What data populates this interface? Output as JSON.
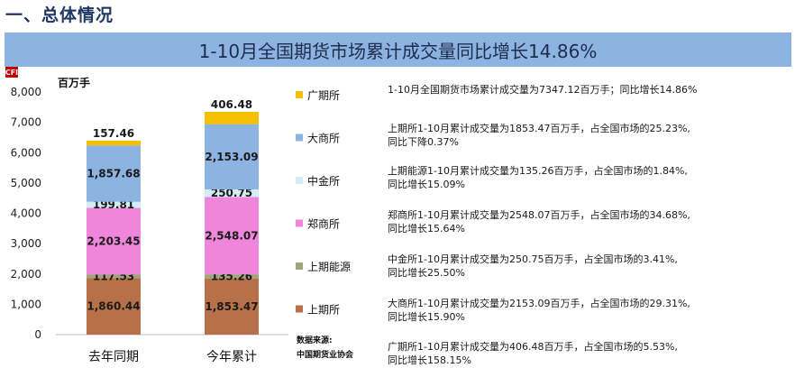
{
  "header": {
    "section_title": "一、总体情况",
    "banner_title": "1-10月全国期货市场累计成交量同比增长14.86%",
    "logo_text": "CFI"
  },
  "chart_data": {
    "type": "bar",
    "stacked": true,
    "unit_label": "百万手",
    "ylim": [
      0,
      8000
    ],
    "yticks": [
      "0",
      "1,000",
      "2,000",
      "3,000",
      "4,000",
      "5,000",
      "6,000",
      "7,000",
      "8,000"
    ],
    "ytick_values": [
      0,
      1000,
      2000,
      3000,
      4000,
      5000,
      6000,
      7000,
      8000
    ],
    "categories": [
      "去年同期",
      "今年累计"
    ],
    "series": [
      {
        "name": "上期所",
        "color": "#b87048",
        "values": [
          1860.44,
          1853.47
        ],
        "labels": [
          "1,860.44",
          "1,853.47"
        ]
      },
      {
        "name": "上期能源",
        "color": "#9fa67a",
        "values": [
          117.53,
          135.26
        ],
        "labels": [
          "117.53",
          "135.26"
        ]
      },
      {
        "name": "郑商所",
        "color": "#ef86db",
        "values": [
          2203.45,
          2548.07
        ],
        "labels": [
          "2,203.45",
          "2,548.07"
        ]
      },
      {
        "name": "中金所",
        "color": "#d4ecf3",
        "values": [
          199.81,
          250.75
        ],
        "labels": [
          "199.81",
          "250.75"
        ]
      },
      {
        "name": "大商所",
        "color": "#8db3e2",
        "values": [
          1857.68,
          2153.09
        ],
        "labels": [
          "1,857.68",
          "2,153.09"
        ]
      },
      {
        "name": "广期所",
        "color": "#f5c000",
        "values": [
          157.46,
          406.48
        ],
        "labels": [
          "157.46",
          "406.48"
        ]
      }
    ],
    "legend_order": [
      "广期所",
      "大商所",
      "中金所",
      "郑商所",
      "上期能源",
      "上期所"
    ],
    "legend_placement": "right",
    "grid": false
  },
  "source": {
    "line1": "数据来源:",
    "line2": "中国期货业协会"
  },
  "notes": [
    {
      "line1": "1-10月全国期货市场累计成交量为7347.12百万手；同比增长14.86%",
      "line2": ""
    },
    {
      "line1": "上期所1-10月累计成交量为1853.47百万手，占全国市场的25.23%,",
      "line2": "同比下降0.37%"
    },
    {
      "line1": "上期能源1-10月累计成交量为135.26百万手，占全国市场的1.84%,",
      "line2": "同比增长15.09%"
    },
    {
      "line1": "郑商所1-10月累计成交量为2548.07百万手，占全国市场的34.68%,",
      "line2": "同比增长15.64%"
    },
    {
      "line1": "中金所1-10月累计成交量为250.75百万手，占全国市场的3.41%,",
      "line2": "同比增长25.50%"
    },
    {
      "line1": "大商所1-10月累计成交量为2153.09百万手，占全国市场的29.31%,",
      "line2": "同比增长15.90%"
    },
    {
      "line1": "广期所1-10月累计成交量为406.48百万手，占全国市场的5.53%,",
      "line2": "同比增长158.15%"
    }
  ]
}
